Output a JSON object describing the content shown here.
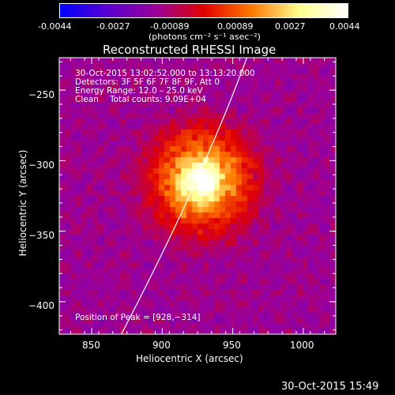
{
  "colorbar": {
    "ticks": [
      "-0.0044",
      "-0.0027",
      "-0.00089",
      "0.00089",
      "0.0027",
      "0.0044"
    ],
    "unit_label": "(photons cm⁻² s⁻¹ asec⁻²)",
    "range": [
      -0.0044,
      0.0044
    ],
    "colors": [
      "#0000ff",
      "#5a00d0",
      "#9a009a",
      "#e10000",
      "#ff7a00",
      "#ffff90",
      "#ffffff"
    ]
  },
  "annotations": {
    "time_range": "30-Oct-2015 13:02:52.000 to 13:13:20.000",
    "detectors": "Detectors: 3F 5F 6F 7F 8F 9F, Att 0",
    "energy": "Energy Range: 12.0 – 25.0 keV",
    "clean": "Clean",
    "total_counts": "Total counts: 9.09E+04",
    "peak_position": "Position of Peak = [928,−314]"
  },
  "timestamp": "30-Oct-2015 15:49",
  "chart_data": {
    "type": "heatmap",
    "title": "Reconstructed RHESSI Image",
    "xlabel": "Heliocentric X (arcsec)",
    "ylabel": "Heliocentric Y (arcsec)",
    "xlim": [
      827,
      1023
    ],
    "ylim": [
      -423,
      -227
    ],
    "x_ticks": [
      850,
      900,
      950,
      1000
    ],
    "y_ticks": [
      -250,
      -300,
      -350,
      -400
    ],
    "x_tick_labels": [
      "850",
      "900",
      "950",
      "1000"
    ],
    "y_tick_labels": [
      "−250",
      "−300",
      "−350",
      "−400"
    ],
    "peak": [
      928,
      -314
    ],
    "limb_curve": [
      [
        871,
        -423
      ],
      [
        928,
        -314
      ],
      [
        960,
        -227
      ]
    ],
    "colors": {
      "background": "#000000",
      "axes": "#ffffff",
      "limb": "#ffffff"
    }
  }
}
